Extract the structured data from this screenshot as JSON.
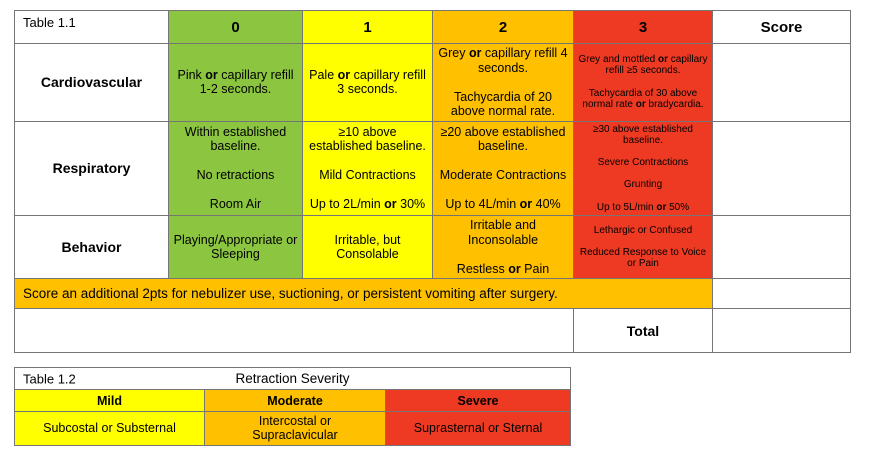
{
  "colors": {
    "green": "#8CC640",
    "yellow": "#FFFF00",
    "orange": "#FFC000",
    "red": "#EE3A23",
    "border": "#757575",
    "text": "#000000"
  },
  "table1": {
    "title": "Table 1.1",
    "score_header": "Score",
    "score_columns": [
      "0",
      "1",
      "2",
      "3"
    ],
    "rows": [
      {
        "label": "Cardiovascular",
        "cells": [
          "Pink **or** capillary refill\n1-2 seconds.",
          "Pale **or** capillary refill\n3 seconds.",
          "Grey **or** capillary refill 4 seconds.\n\nTachycardia of 20 above normal rate.",
          "Grey and mottled **or** capillary refill ≥5 seconds.\n\nTachycardia of 30 above normal rate **or** bradycardia."
        ]
      },
      {
        "label": "Respiratory",
        "cells": [
          "Within established baseline.\n\nNo retractions\n\nRoom Air",
          "≥10 above established baseline.\n\nMild Contractions\n\nUp to 2L/min **or** 30%",
          "≥20 above established baseline.\n\nModerate Contractions\n\nUp to 4L/min **or** 40%",
          "≥30 above established baseline.\n\nSevere Contractions\n\nGrunting\n\nUp to 5L/min **or** 50%"
        ]
      },
      {
        "label": "Behavior",
        "cells": [
          "Playing/Appropriate or Sleeping",
          "Irritable, but Consolable",
          "Irritable and Inconsolable\n\nRestless **or** Pain",
          "Lethargic or Confused\n\nReduced Response to Voice or Pain"
        ]
      }
    ],
    "note": "Score an additional 2pts for nebulizer use, suctioning, or persistent vomiting after surgery.",
    "total_label": "Total"
  },
  "table2": {
    "title": "Table 1.2",
    "heading": "Retraction Severity",
    "columns": [
      {
        "label": "Mild",
        "description": "Subcostal or Substernal"
      },
      {
        "label": "Moderate",
        "description": "Intercostal or\nSupraclavicular"
      },
      {
        "label": "Severe",
        "description": "Suprasternal or Sternal"
      }
    ]
  }
}
